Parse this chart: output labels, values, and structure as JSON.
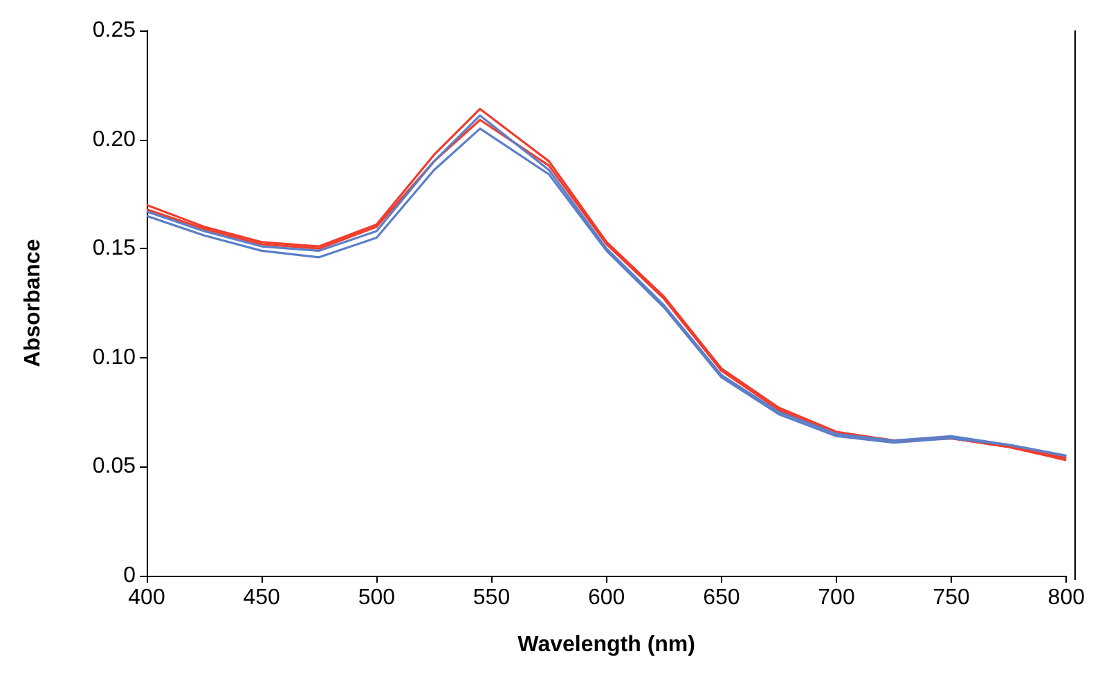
{
  "chart_data": {
    "type": "line",
    "xlabel": "Wavelength (nm)",
    "ylabel": "Absorbance",
    "x": [
      400,
      425,
      450,
      475,
      500,
      525,
      545,
      575,
      600,
      625,
      650,
      675,
      700,
      725,
      750,
      775,
      800
    ],
    "series": [
      {
        "color": "#f03c2c",
        "values": [
          0.17,
          0.16,
          0.153,
          0.151,
          0.161,
          0.193,
          0.214,
          0.19,
          0.153,
          0.128,
          0.095,
          0.077,
          0.066,
          0.062,
          0.063,
          0.059,
          0.054
        ]
      },
      {
        "color": "#f03c2c",
        "values": [
          0.168,
          0.159,
          0.152,
          0.15,
          0.16,
          0.19,
          0.209,
          0.188,
          0.152,
          0.127,
          0.094,
          0.076,
          0.065,
          0.062,
          0.063,
          0.059,
          0.053
        ]
      },
      {
        "color": "#5b7fc8",
        "values": [
          0.167,
          0.158,
          0.151,
          0.149,
          0.158,
          0.19,
          0.211,
          0.186,
          0.15,
          0.124,
          0.092,
          0.075,
          0.065,
          0.062,
          0.064,
          0.06,
          0.055
        ]
      },
      {
        "color": "#5b7fc8",
        "values": [
          0.165,
          0.156,
          0.149,
          0.146,
          0.155,
          0.186,
          0.205,
          0.184,
          0.149,
          0.123,
          0.091,
          0.074,
          0.064,
          0.061,
          0.063,
          0.06,
          0.055
        ]
      }
    ],
    "xlim": [
      400,
      800
    ],
    "xticks": [
      400,
      450,
      500,
      550,
      600,
      650,
      700,
      750,
      800
    ],
    "ylim": [
      0,
      0.25
    ],
    "yticks": [
      0,
      {
        "value": 0.05,
        "label": "0.05"
      },
      {
        "value": 0.1,
        "label": "0.10"
      },
      {
        "value": 0.15,
        "label": "0.15"
      },
      {
        "value": 0.2,
        "label": "0.20"
      },
      {
        "value": 0.25,
        "label": "0.25"
      }
    ],
    "grid": false,
    "marker": "none",
    "line_style": "solid"
  }
}
